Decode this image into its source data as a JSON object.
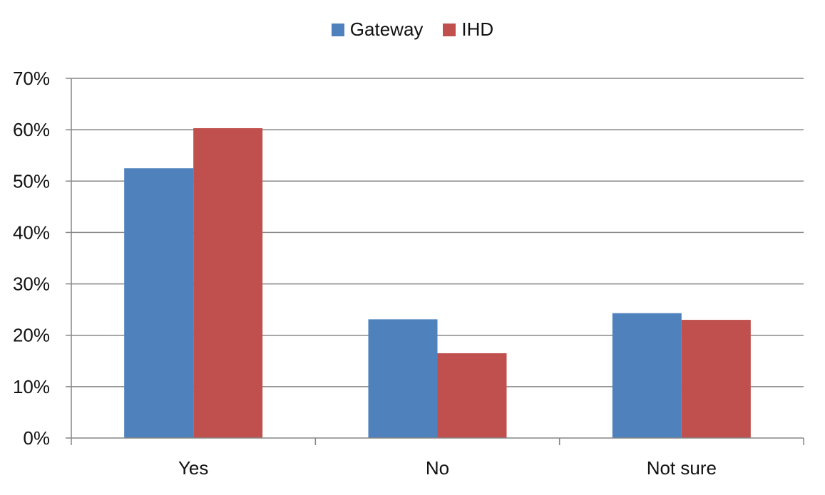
{
  "chart_data": {
    "type": "bar",
    "categories": [
      "Yes",
      "No",
      "Not sure"
    ],
    "series": [
      {
        "name": "Gateway",
        "values": [
          52.5,
          23.1,
          24.3
        ],
        "color": "#4f81bd"
      },
      {
        "name": "IHD",
        "values": [
          60.3,
          16.5,
          23.0
        ],
        "color": "#c0504d"
      }
    ],
    "yticks": [
      "0%",
      "10%",
      "20%",
      "30%",
      "40%",
      "50%",
      "60%",
      "70%"
    ],
    "ylim": [
      0,
      70
    ],
    "grid": true,
    "legend_position": "top-center"
  }
}
